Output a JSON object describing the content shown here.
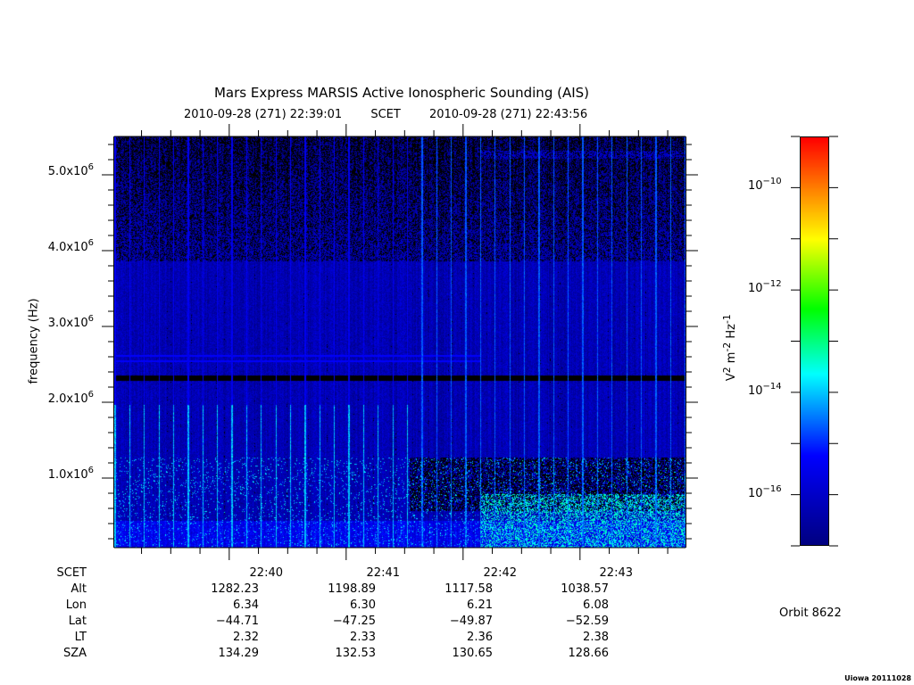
{
  "chart_data": {
    "type": "heatmap",
    "title": "Mars Express MARSIS Active Ionospheric Sounding (AIS)",
    "time_start": "2010-09-28 (271) 22:39:01",
    "time_axis_label": "SCET",
    "time_end": "2010-09-28 (271) 22:43:56",
    "x_range_seconds_after_2239": [
      1,
      296
    ],
    "ylabel": "frequency (Hz)",
    "ylim": [
      80000,
      5500000
    ],
    "y_ticks": [
      {
        "value": 5000000,
        "mant": "5.0x10",
        "exp": "6"
      },
      {
        "value": 4000000,
        "mant": "4.0x10",
        "exp": "6"
      },
      {
        "value": 3000000,
        "mant": "3.0x10",
        "exp": "6"
      },
      {
        "value": 2000000,
        "mant": "2.0x10",
        "exp": "6"
      },
      {
        "value": 1000000,
        "mant": "1.0x10",
        "exp": "6"
      }
    ],
    "colorbar": {
      "label_base": "V",
      "label_parts": [
        "2",
        "m",
        "-2",
        "Hz",
        "-1"
      ],
      "log_range": [
        -17,
        -9
      ],
      "ticks": [
        {
          "value": -10,
          "base": "10",
          "exp": "−10"
        },
        {
          "value": -12,
          "base": "10",
          "exp": "−12"
        },
        {
          "value": -14,
          "base": "10",
          "exp": "−14"
        },
        {
          "value": -16,
          "base": "10",
          "exp": "−16"
        }
      ],
      "colors": [
        "#000080",
        "#0000ff",
        "#00ffff",
        "#00ff00",
        "#ffff00",
        "#ff0000"
      ]
    },
    "features": {
      "background_log_power": -16.3,
      "black_band_hz": 2320000,
      "cyan_bands_hz": [
        2550000,
        2620000
      ],
      "ionosphere_cutoff_hz": 1280000,
      "sounding_interval_s": 7.5
    }
  },
  "ephemeris": {
    "rows": [
      {
        "label": "SCET",
        "values": [
          "22:40",
          "22:41",
          "22:42",
          "22:43"
        ]
      },
      {
        "label": "Alt",
        "values": [
          "1282.23",
          "1198.89",
          "1117.58",
          "1038.57"
        ]
      },
      {
        "label": "Lon",
        "values": [
          "6.34",
          "6.30",
          "6.21",
          "6.08"
        ]
      },
      {
        "label": "Lat",
        "values": [
          "−44.71",
          "−47.25",
          "−49.87",
          "−52.59"
        ]
      },
      {
        "label": "LT",
        "values": [
          "2.32",
          "2.33",
          "2.36",
          "2.38"
        ]
      },
      {
        "label": "SZA",
        "values": [
          "134.29",
          "132.53",
          "130.65",
          "128.66"
        ]
      }
    ]
  },
  "orbit": "Orbit 8622",
  "footer": "Uiowa 20111028"
}
